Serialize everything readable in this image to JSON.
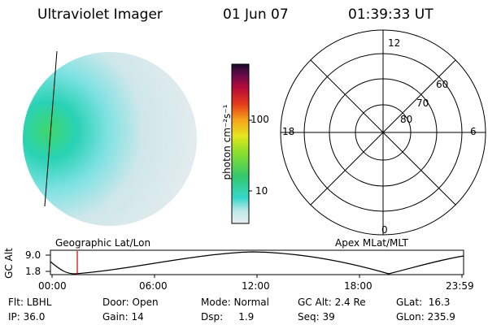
{
  "header": {
    "title": "Ultraviolet Imager",
    "date": "01 Jun 07",
    "time": "01:39:33 UT"
  },
  "colorbar": {
    "unit_label": "photon cm⁻²s⁻¹",
    "ticks": [
      "100",
      "10"
    ]
  },
  "polar_plot": {
    "clock_labels": [
      "12",
      "18",
      "6",
      "0"
    ],
    "latitude_labels": [
      "60",
      "70",
      "80"
    ],
    "caption": "Apex MLat/MLT"
  },
  "geo_image": {
    "caption": "Geographic Lat/Lon"
  },
  "altitude_plot": {
    "ylabel": "GC Alt",
    "yticks": [
      "9.0",
      "1.8"
    ],
    "xticks": [
      "00:00",
      "06:00",
      "12:00",
      "18:00",
      "23:59"
    ]
  },
  "status": {
    "flt": "Flt: LBHL",
    "ip": "IP: 36.0",
    "door": "Door: Open",
    "gain": "Gain: 14",
    "mode": "Mode: Normal",
    "dsp": "Dsp:     1.9",
    "gcalt": "GC Alt: 2.4 Re",
    "seq": "Seq: 39",
    "glat": "GLat:  16.3",
    "glon": "GLon: 235.9"
  },
  "colors": {
    "cursor_line": "#cc0000",
    "scale_low": "#dfe8ea",
    "scale_mid": "#22dccc",
    "scale_high": "#2a0a2a"
  }
}
